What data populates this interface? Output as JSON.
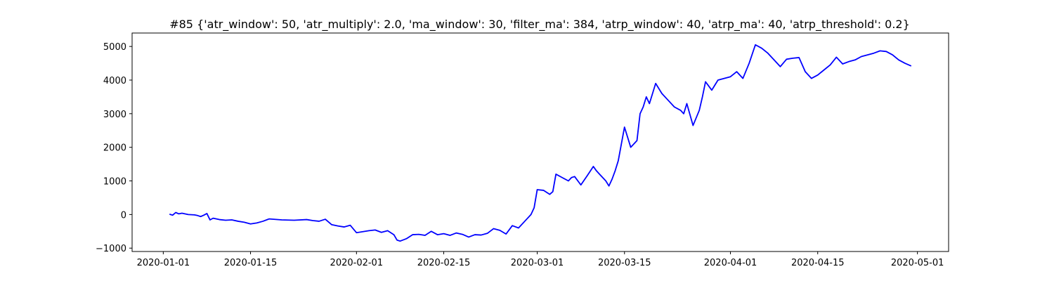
{
  "chart_data": {
    "type": "line",
    "title": "#85 {'atr_window': 50, 'atr_multiply': 2.0, 'ma_window': 30, 'filter_ma': 384, 'atrp_window': 40, 'atrp_ma': 40, 'atrp_threshold': 0.2}",
    "xlabel": "",
    "ylabel": "",
    "x_ticks": [
      "2020-01-01",
      "2020-01-15",
      "2020-02-01",
      "2020-02-15",
      "2020-03-01",
      "2020-03-15",
      "2020-04-01",
      "2020-04-15",
      "2020-05-01"
    ],
    "y_ticks": [
      -1000,
      0,
      1000,
      2000,
      3000,
      4000,
      5000
    ],
    "xlim": [
      "2019-12-27",
      "2020-05-06"
    ],
    "ylim": [
      -1100,
      5400
    ],
    "grid": false,
    "colors": {
      "line": "#0000ff",
      "axes": "#000000",
      "background": "#ffffff"
    },
    "series": [
      {
        "x": [
          "2020-01-02",
          "2020-01-02T12:00",
          "2020-01-03",
          "2020-01-03T12:00",
          "2020-01-04",
          "2020-01-05",
          "2020-01-06",
          "2020-01-06T12:00",
          "2020-01-07",
          "2020-01-07T12:00",
          "2020-01-08",
          "2020-01-08T12:00",
          "2020-01-09",
          "2020-01-10",
          "2020-01-11",
          "2020-01-12",
          "2020-01-13",
          "2020-01-14",
          "2020-01-15",
          "2020-01-16",
          "2020-01-17",
          "2020-01-18",
          "2020-01-20",
          "2020-01-22",
          "2020-01-24",
          "2020-01-25",
          "2020-01-26",
          "2020-01-27",
          "2020-01-28",
          "2020-01-29",
          "2020-01-30",
          "2020-01-31",
          "2020-02-01",
          "2020-02-03",
          "2020-02-04",
          "2020-02-05",
          "2020-02-06",
          "2020-02-07",
          "2020-02-07T12:00",
          "2020-02-08",
          "2020-02-09",
          "2020-02-10",
          "2020-02-11",
          "2020-02-12",
          "2020-02-13",
          "2020-02-14",
          "2020-02-15",
          "2020-02-16",
          "2020-02-17",
          "2020-02-18",
          "2020-02-19",
          "2020-02-20",
          "2020-02-21",
          "2020-02-22",
          "2020-02-23",
          "2020-02-24",
          "2020-02-25",
          "2020-02-26",
          "2020-02-27",
          "2020-02-28",
          "2020-02-29",
          "2020-02-29T12:00",
          "2020-03-01",
          "2020-03-02",
          "2020-03-03",
          "2020-03-03T12:00",
          "2020-03-04",
          "2020-03-05",
          "2020-03-06",
          "2020-03-06T12:00",
          "2020-03-07",
          "2020-03-08",
          "2020-03-09",
          "2020-03-10",
          "2020-03-10T12:00",
          "2020-03-11",
          "2020-03-12",
          "2020-03-12T12:00",
          "2020-03-13",
          "2020-03-13T12:00",
          "2020-03-14",
          "2020-03-15",
          "2020-03-16",
          "2020-03-17",
          "2020-03-17T12:00",
          "2020-03-18",
          "2020-03-18T12:00",
          "2020-03-19",
          "2020-03-20",
          "2020-03-21",
          "2020-03-22",
          "2020-03-23",
          "2020-03-24",
          "2020-03-24T12:00",
          "2020-03-25",
          "2020-03-26",
          "2020-03-27",
          "2020-03-27T12:00",
          "2020-03-28",
          "2020-03-29",
          "2020-03-30",
          "2020-03-31",
          "2020-04-01",
          "2020-04-02",
          "2020-04-03",
          "2020-04-04",
          "2020-04-05",
          "2020-04-06",
          "2020-04-07",
          "2020-04-08",
          "2020-04-09",
          "2020-04-10",
          "2020-04-11",
          "2020-04-12",
          "2020-04-13",
          "2020-04-14",
          "2020-04-15",
          "2020-04-16",
          "2020-04-17",
          "2020-04-18",
          "2020-04-19",
          "2020-04-20",
          "2020-04-21",
          "2020-04-22",
          "2020-04-23",
          "2020-04-24",
          "2020-04-25",
          "2020-04-26",
          "2020-04-27",
          "2020-04-28",
          "2020-04-29",
          "2020-04-30"
        ],
        "values": [
          10,
          -20,
          60,
          20,
          40,
          0,
          -10,
          -30,
          -60,
          -20,
          30,
          -160,
          -110,
          -150,
          -170,
          -160,
          -200,
          -230,
          -280,
          -250,
          -200,
          -130,
          -160,
          -170,
          -150,
          -180,
          -200,
          -140,
          -300,
          -340,
          -370,
          -320,
          -540,
          -480,
          -460,
          -530,
          -480,
          -600,
          -760,
          -790,
          -720,
          -600,
          -590,
          -620,
          -500,
          -600,
          -570,
          -620,
          -550,
          -590,
          -670,
          -600,
          -610,
          -560,
          -420,
          -470,
          -580,
          -330,
          -400,
          -200,
          0,
          200,
          740,
          720,
          600,
          680,
          1200,
          1100,
          1000,
          1100,
          1130,
          880,
          1150,
          1430,
          1300,
          1200,
          1000,
          850,
          1050,
          1300,
          1600,
          2600,
          2000,
          2200,
          3000,
          3200,
          3500,
          3300,
          3900,
          3600,
          3400,
          3200,
          3100,
          3000,
          3300,
          2650,
          3100,
          3500,
          3950,
          3700,
          4000,
          4050,
          4100,
          4250,
          4050,
          4500,
          5050,
          4950,
          4800,
          4600,
          4400,
          4620,
          4650,
          4670,
          4250,
          4050,
          4150,
          4300,
          4450,
          4680,
          4480,
          4550,
          4600,
          4700,
          4750,
          4800,
          4870,
          4850,
          4750,
          4600,
          4500,
          4420
        ]
      }
    ]
  }
}
